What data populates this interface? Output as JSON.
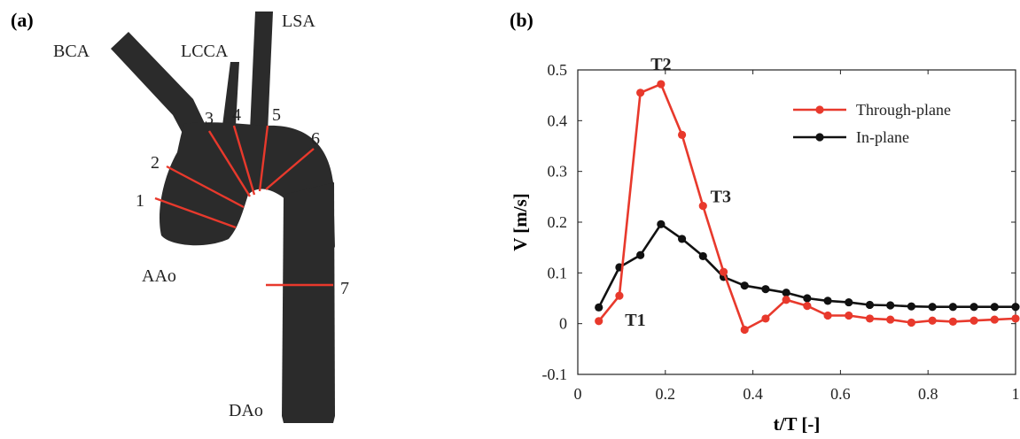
{
  "panel_a": {
    "label": "(a)",
    "vessels": {
      "bca": "BCA",
      "lcca": "LCCA",
      "lsa": "LSA",
      "aao": "AAo",
      "dao": "DAo"
    },
    "planes": [
      "1",
      "2",
      "3",
      "4",
      "5",
      "6",
      "7"
    ],
    "colors": {
      "vessel": "#2b2b2b",
      "plane": "#e8392c"
    }
  },
  "panel_b": {
    "label": "(b)"
  },
  "chart_data": {
    "type": "line",
    "xlabel": "t/T [-]",
    "ylabel": "V [m/s]",
    "xlim": [
      0,
      1
    ],
    "ylim": [
      -0.1,
      0.5
    ],
    "xticks": [
      "0",
      "0.2",
      "0.4",
      "0.6",
      "0.8",
      "1"
    ],
    "yticks": [
      "-0.1",
      "0",
      "0.1",
      "0.2",
      "0.3",
      "0.4",
      "0.5"
    ],
    "grid": false,
    "legend_position": "top-right",
    "series": [
      {
        "name": "Through-plane",
        "color": "#e8392c",
        "x": [
          0.048,
          0.095,
          0.143,
          0.19,
          0.238,
          0.286,
          0.333,
          0.381,
          0.429,
          0.476,
          0.524,
          0.571,
          0.619,
          0.667,
          0.714,
          0.762,
          0.81,
          0.857,
          0.905,
          0.952,
          1.0
        ],
        "y": [
          0.005,
          0.055,
          0.455,
          0.472,
          0.372,
          0.232,
          0.102,
          -0.012,
          0.01,
          0.047,
          0.035,
          0.016,
          0.016,
          0.01,
          0.008,
          0.002,
          0.006,
          0.004,
          0.006,
          0.008,
          0.01
        ]
      },
      {
        "name": "In-plane",
        "color": "#111111",
        "x": [
          0.048,
          0.095,
          0.143,
          0.19,
          0.238,
          0.286,
          0.333,
          0.381,
          0.429,
          0.476,
          0.524,
          0.571,
          0.619,
          0.667,
          0.714,
          0.762,
          0.81,
          0.857,
          0.905,
          0.952,
          1.0
        ],
        "y": [
          0.032,
          0.111,
          0.135,
          0.196,
          0.167,
          0.133,
          0.092,
          0.075,
          0.068,
          0.061,
          0.05,
          0.045,
          0.042,
          0.037,
          0.036,
          0.034,
          0.033,
          0.033,
          0.033,
          0.033,
          0.033
        ]
      }
    ],
    "annotations": [
      {
        "text": "T1",
        "x": 0.095,
        "y": 0.055
      },
      {
        "text": "T2",
        "x": 0.19,
        "y": 0.472
      },
      {
        "text": "T3",
        "x": 0.286,
        "y": 0.232
      }
    ]
  }
}
